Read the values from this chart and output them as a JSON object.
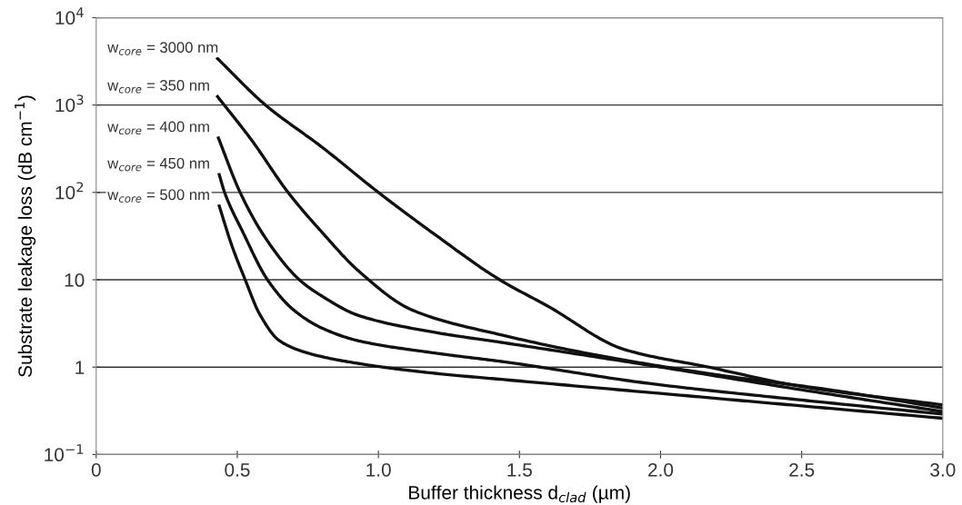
{
  "chart_data": {
    "type": "line",
    "xlabel": "Buffer thickness d$_{clad}$ (µm)",
    "ylabel": "Substrate leakage loss (dB cm$^{−1}$)",
    "log": "y",
    "grid": "y",
    "legend": false,
    "marker": "none",
    "line_style": "solid",
    "xlim": [
      0,
      3.0
    ],
    "ylim": [
      0.1,
      10000
    ],
    "xticks": [
      0,
      0.5,
      {
        "value": 1.0,
        "label": "1.0"
      },
      1.5,
      {
        "value": 2.0,
        "label": "2.0"
      },
      2.5,
      {
        "value": 3.0,
        "label": "3.0"
      }
    ],
    "yticks": [
      {
        "value": 0.1,
        "label": "10$^{−1}$"
      },
      1,
      10,
      {
        "value": 100,
        "label": "10$^{2}$"
      },
      {
        "value": 1000,
        "label": "10$^{3}$"
      },
      {
        "value": 10000,
        "label": "10$^{4}$"
      }
    ],
    "series": [
      {
        "name": "w$_{core}$ = 3000 nm",
        "color": "#111111",
        "x": [
          0.43,
          0.6,
          0.8,
          1.0,
          1.2,
          1.43,
          1.6,
          1.87,
          2.17,
          2.5,
          3.0
        ],
        "values": [
          3400,
          1000,
          330,
          100,
          33,
          10,
          5,
          1.6,
          1.0,
          0.6,
          0.37
        ]
      },
      {
        "name": "w$_{core}$ = 350 nm",
        "color": "#111111",
        "x": [
          0.43,
          0.55,
          0.68,
          0.8,
          0.93,
          1.12,
          1.445,
          1.83,
          2.22,
          2.6,
          3.0
        ],
        "values": [
          1250,
          400,
          100,
          35,
          12.6,
          4.5,
          2.3,
          1.27,
          0.8,
          0.55,
          0.34
        ]
      },
      {
        "name": "w$_{core}$ = 400 nm",
        "color": "#111111",
        "x": [
          0.433,
          0.51,
          0.6,
          0.72,
          0.8,
          0.93,
          1.2,
          1.445,
          1.96,
          2.5,
          3.0
        ],
        "values": [
          420,
          100,
          30,
          10,
          6.5,
          3.9,
          2.5,
          1.9,
          1.05,
          0.55,
          0.31
        ]
      },
      {
        "name": "w$_{core}$ = 450 nm",
        "color": "#111111",
        "x": [
          0.436,
          0.455,
          0.52,
          0.607,
          0.7,
          0.8,
          0.93,
          1.2,
          1.445,
          1.96,
          2.5,
          3.0
        ],
        "values": [
          160,
          100,
          35,
          10,
          4.5,
          2.8,
          2.0,
          1.45,
          1.15,
          0.65,
          0.42,
          0.29
        ]
      },
      {
        "name": "w$_{core}$ = 500 nm",
        "color": "#111111",
        "x": [
          0.436,
          0.48,
          0.528,
          0.58,
          0.65,
          0.75,
          0.93,
          1.2,
          1.445,
          2.0,
          2.5,
          3.0
        ],
        "values": [
          70,
          25,
          10,
          4,
          2,
          1.45,
          1.1,
          0.85,
          0.72,
          0.5,
          0.36,
          0.26
        ]
      }
    ]
  }
}
